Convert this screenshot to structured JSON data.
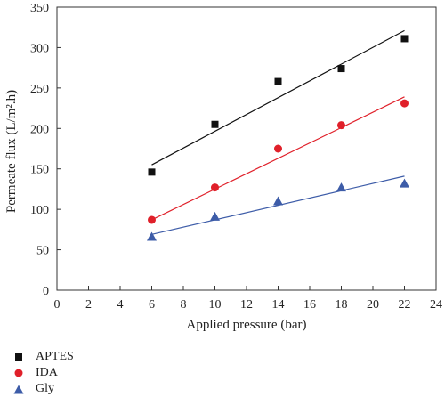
{
  "chart_data": {
    "type": "scatter",
    "xlabel": "Applied pressure (bar)",
    "ylabel": "Permeate flux (L/m².h)",
    "xlim": [
      0,
      24
    ],
    "ylim": [
      0,
      350
    ],
    "xticks": [
      0,
      2,
      4,
      6,
      8,
      10,
      12,
      14,
      16,
      18,
      20,
      22,
      24
    ],
    "yticks": [
      0,
      50,
      100,
      150,
      200,
      250,
      300,
      350
    ],
    "grid": false,
    "legend_position": "bottom-left outside",
    "series": [
      {
        "name": "APTES",
        "marker": "square",
        "color": "#111111",
        "fit_color": "#111111",
        "x": [
          6,
          10,
          14,
          18,
          22
        ],
        "y": [
          146,
          205,
          258,
          274,
          311
        ],
        "fit": [
          [
            6,
            155
          ],
          [
            22,
            321
          ]
        ]
      },
      {
        "name": "IDA",
        "marker": "circle",
        "color": "#e0202a",
        "fit_color": "#e0202a",
        "x": [
          6,
          10,
          14,
          18,
          22
        ],
        "y": [
          87,
          127,
          175,
          204,
          231
        ],
        "fit": [
          [
            6,
            87
          ],
          [
            22,
            239
          ]
        ]
      },
      {
        "name": "Gly",
        "marker": "triangle",
        "color": "#3d5ca8",
        "fit_color": "#3d5ca8",
        "x": [
          6,
          10,
          14,
          18,
          22
        ],
        "y": [
          66,
          91,
          110,
          127,
          132
        ],
        "fit": [
          [
            6,
            69
          ],
          [
            22,
            141
          ]
        ]
      }
    ]
  }
}
